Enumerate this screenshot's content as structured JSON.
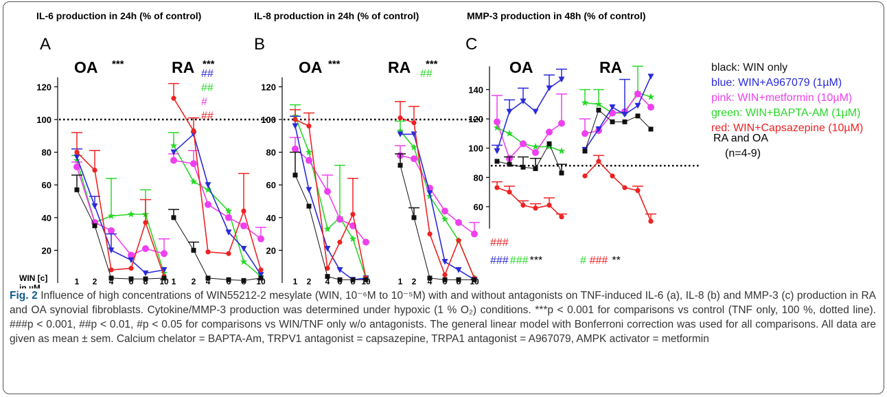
{
  "panels": [
    {
      "letter": "A",
      "title": "IL-6 production in 24h (% of control)",
      "ticks": [
        "20",
        "40",
        "60",
        "80",
        "100",
        "120"
      ],
      "groups": [
        "OA",
        "RA"
      ],
      "sig": [
        "***",
        "***"
      ],
      "rahash": [
        {
          "t": "##",
          "c": "#2a2ad8"
        },
        {
          "t": "##",
          "c": "#28d828"
        },
        {
          "t": "#",
          "c": "#ee40ee"
        },
        {
          "t": "##",
          "c": "#ee2222"
        }
      ]
    },
    {
      "letter": "B",
      "title": "IL-8 production in 24h (% of control)",
      "ticks": [
        "20",
        "40",
        "60",
        "80",
        "100",
        "120"
      ],
      "groups": [
        "OA",
        "RA"
      ],
      "sig": [
        "***",
        "***"
      ],
      "rahash": [
        {
          "t": "##",
          "c": "#28d828"
        }
      ]
    },
    {
      "letter": "C",
      "title": "MMP-3 production in 48h (% of control)",
      "ticks": [
        "60",
        "80",
        "100",
        "120",
        "140"
      ],
      "groups": [
        "OA",
        "RA"
      ]
    }
  ],
  "x_axis": {
    "label_line1": "WIN [c]",
    "label_line2": "in µM",
    "doses": [
      "1",
      "2",
      "4",
      "6",
      "8",
      "10"
    ]
  },
  "panel_c_marks": {
    "oa_red": "###",
    "oa_blue": "###",
    "oa_green": "###",
    "oa_black": "***",
    "ra_green": "#",
    "ra_red": "###",
    "ra_black": "**"
  },
  "legend": [
    {
      "text": "black: WIN only",
      "color": "#111111"
    },
    {
      "text": "blue: WIN+A967079 (1µM)",
      "color": "#2a2ad8"
    },
    {
      "text": "pink: WIN+metformin (10µM)",
      "color": "#ee40ee"
    },
    {
      "text": "green: WIN+BAPTA-AM (1µM)",
      "color": "#28d828"
    },
    {
      "text": "red: WIN+Capsazepine (10µM)",
      "color": "#ee2222"
    }
  ],
  "legend_note": {
    "line1": "RA and OA",
    "line2": "(n=4-9)"
  },
  "caption": {
    "lead": "Fig. 2",
    "text": " Influence of high concentrations of WIN55212-2 mesylate (WIN, 10⁻⁶M to 10⁻⁵M) with and without antagonists on TNF-induced IL-6 (a), IL-8 (b) and MMP-3 (c) production in RA and OA synovial fibroblasts. Cytokine/MMP-3 production was determined under hypoxic (1 % O₂) conditions. ***p < 0.001 for comparisons vs control (TNF only, 100 %, dotted line). ###p < 0.001, ##p < 0.01, #p < 0.05 for comparisons vs WIN/TNF only w/o antagonists. The general linear model with Bonferroni correction was used for all comparisons. All data are given as mean ± sem. Calcium chelator = BAPTA-Am, TRPV1 antagonist = capsazepine, TRPA1 antagonist = A967079, AMPK activator = metformin"
  },
  "colors": {
    "black": "#111111",
    "blue": "#2a2ad8",
    "pink": "#ee40ee",
    "green": "#28d828",
    "red": "#ee2222"
  },
  "chart_data": [
    {
      "type": "line",
      "title": "IL-6 production in 24h (% of control)",
      "xlabel": "WIN [c] in µM",
      "categories": [
        "1",
        "2",
        "4",
        "6",
        "8",
        "10"
      ],
      "ylim": [
        0,
        125
      ],
      "reference_line": 100,
      "groups": [
        {
          "name": "OA",
          "series": [
            {
              "name": "black",
              "values": [
                57,
                35,
                3,
                2.5,
                2.5,
                3
              ],
              "err": [
                9,
                0,
                0,
                0,
                0,
                0
              ]
            },
            {
              "name": "blue",
              "values": [
                77,
                47,
                20,
                14,
                6,
                8
              ],
              "err": [
                5,
                6,
                10,
                0,
                0,
                0
              ]
            },
            {
              "name": "pink",
              "values": [
                71,
                37,
                32,
                17,
                21,
                18
              ],
              "err": [
                3,
                0,
                0,
                0,
                0,
                9
              ]
            },
            {
              "name": "green",
              "values": [
                75,
                37,
                41,
                42,
                42,
                6
              ],
              "err": [
                3,
                0,
                23,
                0,
                15,
                0
              ]
            },
            {
              "name": "red",
              "values": [
                80,
                69,
                8,
                9,
                37,
                4
              ],
              "err": [
                12,
                12,
                0,
                0,
                14,
                0
              ]
            }
          ]
        },
        {
          "name": "RA",
          "series": [
            {
              "name": "black",
              "values": [
                40,
                20,
                3,
                2,
                1.5,
                3
              ],
              "err": [
                5,
                5,
                0,
                0,
                0,
                0
              ]
            },
            {
              "name": "blue",
              "values": [
                80,
                91,
                60,
                31,
                21,
                5
              ],
              "err": [
                0,
                0,
                0,
                0,
                0,
                0
              ]
            },
            {
              "name": "pink",
              "values": [
                75,
                73,
                48,
                40,
                35,
                27
              ],
              "err": [
                4,
                8,
                0,
                0,
                0,
                7
              ]
            },
            {
              "name": "green",
              "values": [
                84,
                62,
                57,
                44,
                13,
                4
              ],
              "err": [
                8,
                0,
                0,
                0,
                0,
                0
              ]
            },
            {
              "name": "red",
              "values": [
                113,
                93,
                19,
                18,
                44,
                8
              ],
              "err": [
                9,
                8,
                0,
                0,
                23,
                0
              ]
            }
          ]
        }
      ]
    },
    {
      "type": "line",
      "title": "IL-8 production in 24h (% of control)",
      "categories": [
        "1",
        "2",
        "4",
        "6",
        "8",
        "10"
      ],
      "ylim": [
        0,
        125
      ],
      "reference_line": 100,
      "groups": [
        {
          "name": "OA",
          "series": [
            {
              "name": "black",
              "values": [
                66,
                47,
                4,
                2,
                2,
                2
              ],
              "err": [
                14,
                0,
                0,
                0,
                0,
                0
              ]
            },
            {
              "name": "blue",
              "values": [
                96,
                57,
                21,
                8,
                2,
                3
              ],
              "err": [
                6,
                0,
                0,
                0,
                0,
                0
              ]
            },
            {
              "name": "pink",
              "values": [
                82,
                75,
                56,
                39,
                35,
                25
              ],
              "err": [
                7,
                0,
                10,
                0,
                0,
                0
              ]
            },
            {
              "name": "green",
              "values": [
                102,
                80,
                33,
                40,
                27,
                3
              ],
              "err": [
                7,
                0,
                0,
                32,
                0,
                0
              ]
            },
            {
              "name": "red",
              "values": [
                100,
                96,
                9,
                25,
                42,
                3
              ],
              "err": [
                6,
                8,
                0,
                0,
                22,
                0
              ]
            }
          ]
        },
        {
          "name": "RA",
          "series": [
            {
              "name": "black",
              "values": [
                72,
                40,
                3,
                2,
                2,
                2
              ],
              "err": [
                7,
                6,
                0,
                0,
                0,
                0
              ]
            },
            {
              "name": "blue",
              "values": [
                91,
                91,
                55,
                13,
                8,
                2
              ],
              "err": [
                0,
                0,
                0,
                0,
                0,
                0
              ]
            },
            {
              "name": "pink",
              "values": [
                78,
                76,
                58,
                44,
                37,
                30
              ],
              "err": [
                6,
                0,
                0,
                0,
                0,
                7
              ]
            },
            {
              "name": "green",
              "values": [
                93,
                83,
                53,
                39,
                26,
                3
              ],
              "err": [
                6,
                0,
                0,
                0,
                0,
                0
              ]
            },
            {
              "name": "red",
              "values": [
                101,
                98,
                30,
                5,
                26,
                3
              ],
              "err": [
                10,
                10,
                0,
                0,
                0,
                0
              ]
            }
          ]
        }
      ]
    },
    {
      "type": "line",
      "title": "MMP-3 production in 48h (% of control)",
      "categories": [
        "1",
        "2",
        "4",
        "6",
        "8",
        "10"
      ],
      "ylim": [
        45,
        155
      ],
      "reference_line": 88,
      "groups": [
        {
          "name": "OA",
          "series": [
            {
              "name": "black",
              "values": [
                91,
                89,
                87,
                86,
                103,
                83
              ],
              "err": [
                0,
                5,
                7,
                7,
                0,
                6
              ]
            },
            {
              "name": "blue",
              "values": [
                98,
                125,
                132,
                125,
                141,
                147
              ],
              "err": [
                4,
                8,
                9,
                0,
                9,
                7
              ]
            },
            {
              "name": "pink",
              "values": [
                118,
                93,
                103,
                97,
                111,
                117
              ],
              "err": [
                18,
                0,
                0,
                0,
                0,
                20
              ]
            },
            {
              "name": "green",
              "values": [
                114,
                110,
                103,
                101,
                101,
                98
              ],
              "err": [
                0,
                0,
                0,
                0,
                0,
                0
              ]
            },
            {
              "name": "red",
              "values": [
                73,
                70,
                61,
                59,
                61,
                53
              ],
              "err": [
                4,
                4,
                3,
                3,
                5,
                2
              ]
            }
          ]
        },
        {
          "name": "RA",
          "series": [
            {
              "name": "black",
              "values": [
                98,
                126,
                118,
                118,
                122,
                113
              ],
              "err": [
                0,
                0,
                0,
                0,
                0,
                0
              ]
            },
            {
              "name": "blue",
              "values": [
                99,
                113,
                128,
                123,
                129,
                149
              ],
              "err": [
                0,
                0,
                0,
                24,
                0,
                0
              ]
            },
            {
              "name": "pink",
              "values": [
                110,
                112,
                124,
                125,
                137,
                128
              ],
              "err": [
                10,
                0,
                0,
                0,
                0,
                0
              ]
            },
            {
              "name": "green",
              "values": [
                131,
                130,
                124,
                124,
                138,
                135
              ],
              "err": [
                9,
                10,
                0,
                0,
                18,
                0
              ]
            },
            {
              "name": "red",
              "values": [
                81,
                91,
                81,
                73,
                71,
                50
              ],
              "err": [
                0,
                4,
                0,
                0,
                3,
                5
              ]
            }
          ]
        }
      ]
    }
  ]
}
